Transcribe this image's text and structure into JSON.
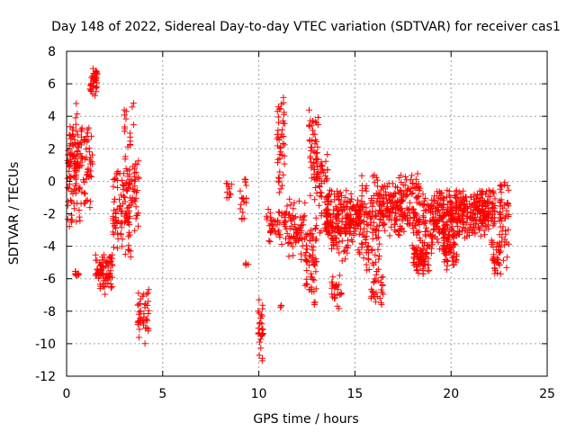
{
  "chart_data": {
    "type": "scatter",
    "title": "Day 148 of 2022, Sidereal Day-to-day VTEC variation (SDTVAR) for receiver cas1",
    "xlabel": "GPS time / hours",
    "ylabel": "SDTVAR / TECUs",
    "xlim": [
      0,
      25
    ],
    "ylim": [
      -12,
      8
    ],
    "grid": true,
    "xticks": [
      0,
      5,
      10,
      15,
      20,
      25
    ],
    "yticks": [
      -12,
      -10,
      -8,
      -6,
      -4,
      -2,
      0,
      2,
      4,
      6,
      8
    ],
    "marker": "plus",
    "colors": {
      "series": "#ff0000",
      "grid": "#a0a0a0",
      "axis": "#000000"
    },
    "series": [
      {
        "name": "SDTVAR",
        "clusters": [
          {
            "x": [
              0.05,
              0.5
            ],
            "y": [
              -3.0,
              4.2
            ],
            "count": 70
          },
          {
            "x": [
              0.4,
              0.8
            ],
            "y": [
              -3.0,
              5.0
            ],
            "count": 50
          },
          {
            "x": [
              0.45,
              0.65
            ],
            "y": [
              -6.0,
              -5.5
            ],
            "count": 10
          },
          {
            "x": [
              0.8,
              1.35
            ],
            "y": [
              -2.0,
              4.0
            ],
            "count": 45
          },
          {
            "x": [
              1.2,
              1.6
            ],
            "y": [
              5.2,
              7.2
            ],
            "count": 40
          },
          {
            "x": [
              1.5,
              2.4
            ],
            "y": [
              -7.0,
              -4.5
            ],
            "count": 80
          },
          {
            "x": [
              2.4,
              3.3
            ],
            "y": [
              -4.5,
              1.0
            ],
            "count": 90
          },
          {
            "x": [
              3.0,
              3.5
            ],
            "y": [
              -6.0,
              5.2
            ],
            "count": 45
          },
          {
            "x": [
              3.5,
              3.75
            ],
            "y": [
              -3.5,
              2.0
            ],
            "count": 25
          },
          {
            "x": [
              3.7,
              4.3
            ],
            "y": [
              -10.0,
              -6.5
            ],
            "count": 45
          },
          {
            "x": [
              8.3,
              8.6
            ],
            "y": [
              -1.2,
              0.0
            ],
            "count": 10
          },
          {
            "x": [
              9.0,
              9.35
            ],
            "y": [
              -3.0,
              0.6
            ],
            "count": 18
          },
          {
            "x": [
              9.3,
              9.5
            ],
            "y": [
              -5.3,
              -4.7
            ],
            "count": 4
          },
          {
            "x": [
              9.95,
              10.25
            ],
            "y": [
              -12.0,
              -6.8
            ],
            "count": 30
          },
          {
            "x": [
              10.4,
              11.2
            ],
            "y": [
              -4.0,
              -1.5
            ],
            "count": 40
          },
          {
            "x": [
              10.95,
              11.35
            ],
            "y": [
              -1.0,
              5.2
            ],
            "count": 45
          },
          {
            "x": [
              11.1,
              11.3
            ],
            "y": [
              -8.0,
              -7.6
            ],
            "count": 4
          },
          {
            "x": [
              11.3,
              12.4
            ],
            "y": [
              -5.0,
              -1.0
            ],
            "count": 80
          },
          {
            "x": [
              12.4,
              13.0
            ],
            "y": [
              -8.0,
              -2.5
            ],
            "count": 60
          },
          {
            "x": [
              12.6,
              13.1
            ],
            "y": [
              -1.0,
              4.5
            ],
            "count": 50
          },
          {
            "x": [
              12.9,
              13.6
            ],
            "y": [
              -4.0,
              1.8
            ],
            "count": 60
          },
          {
            "x": [
              13.5,
              14.5
            ],
            "y": [
              -5.0,
              -0.5
            ],
            "count": 120
          },
          {
            "x": [
              13.8,
              14.3
            ],
            "y": [
              -8.0,
              -5.5
            ],
            "count": 25
          },
          {
            "x": [
              14.5,
              15.3
            ],
            "y": [
              -4.5,
              -0.5
            ],
            "count": 100
          },
          {
            "x": [
              15.3,
              16.3
            ],
            "y": [
              -6.0,
              0.5
            ],
            "count": 110
          },
          {
            "x": [
              15.8,
              16.5
            ],
            "y": [
              -8.0,
              -5.5
            ],
            "count": 30
          },
          {
            "x": [
              16.3,
              17.2
            ],
            "y": [
              -3.5,
              0.0
            ],
            "count": 90
          },
          {
            "x": [
              17.2,
              18.4
            ],
            "y": [
              -4.0,
              0.5
            ],
            "count": 130
          },
          {
            "x": [
              18.0,
              18.9
            ],
            "y": [
              -5.8,
              -3.8
            ],
            "count": 70
          },
          {
            "x": [
              18.5,
              20.0
            ],
            "y": [
              -4.5,
              -0.5
            ],
            "count": 180
          },
          {
            "x": [
              19.6,
              20.3
            ],
            "y": [
              -5.5,
              -3.0
            ],
            "count": 50
          },
          {
            "x": [
              20.0,
              21.8
            ],
            "y": [
              -3.5,
              -0.5
            ],
            "count": 220
          },
          {
            "x": [
              21.8,
              22.3
            ],
            "y": [
              -3.0,
              -0.5
            ],
            "count": 50
          },
          {
            "x": [
              22.1,
              22.6
            ],
            "y": [
              -6.0,
              -3.5
            ],
            "count": 35
          },
          {
            "x": [
              22.5,
              23.0
            ],
            "y": [
              -5.5,
              0.2
            ],
            "count": 50
          }
        ]
      }
    ]
  }
}
